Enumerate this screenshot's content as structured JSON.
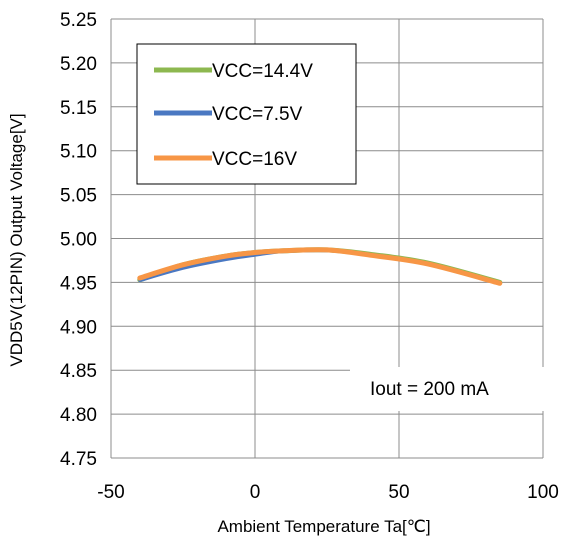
{
  "chart_data": {
    "type": "line",
    "xlabel": "Ambient Temperature Ta[℃]",
    "ylabel": "VDD5V(12PIN) Output Voltage[V]",
    "xlim": [
      -50,
      100
    ],
    "ylim": [
      4.75,
      5.25
    ],
    "xticks": [
      "-50",
      "0",
      "50",
      "100"
    ],
    "yticks": [
      "4.75",
      "4.80",
      "4.85",
      "4.90",
      "4.95",
      "5.00",
      "5.05",
      "5.10",
      "5.15",
      "5.20",
      "5.25"
    ],
    "grid": "horizontal and vertical",
    "legend_position": "top-left",
    "annotation": "Iout = 200 mA",
    "series": [
      {
        "name": "VCC=14.4V",
        "color": "#8DB850",
        "x": [
          -40,
          -25,
          -10,
          0,
          10,
          25,
          40,
          60,
          85
        ],
        "y": [
          4.953,
          4.97,
          4.98,
          4.984,
          4.986,
          4.987,
          4.982,
          4.972,
          4.95
        ]
      },
      {
        "name": "VCC=7.5V",
        "color": "#4A78C2",
        "x": [
          -40,
          -25,
          -10,
          0,
          10,
          25,
          40,
          60,
          85
        ],
        "y": [
          4.952,
          4.966,
          4.976,
          4.981,
          4.985,
          4.986,
          4.982,
          4.971,
          4.949
        ]
      },
      {
        "name": "VCC=16V",
        "color": "#F79646",
        "x": [
          -40,
          -25,
          -10,
          0,
          10,
          25,
          40,
          60,
          85
        ],
        "y": [
          4.955,
          4.97,
          4.98,
          4.984,
          4.986,
          4.987,
          4.981,
          4.971,
          4.949
        ]
      }
    ]
  }
}
